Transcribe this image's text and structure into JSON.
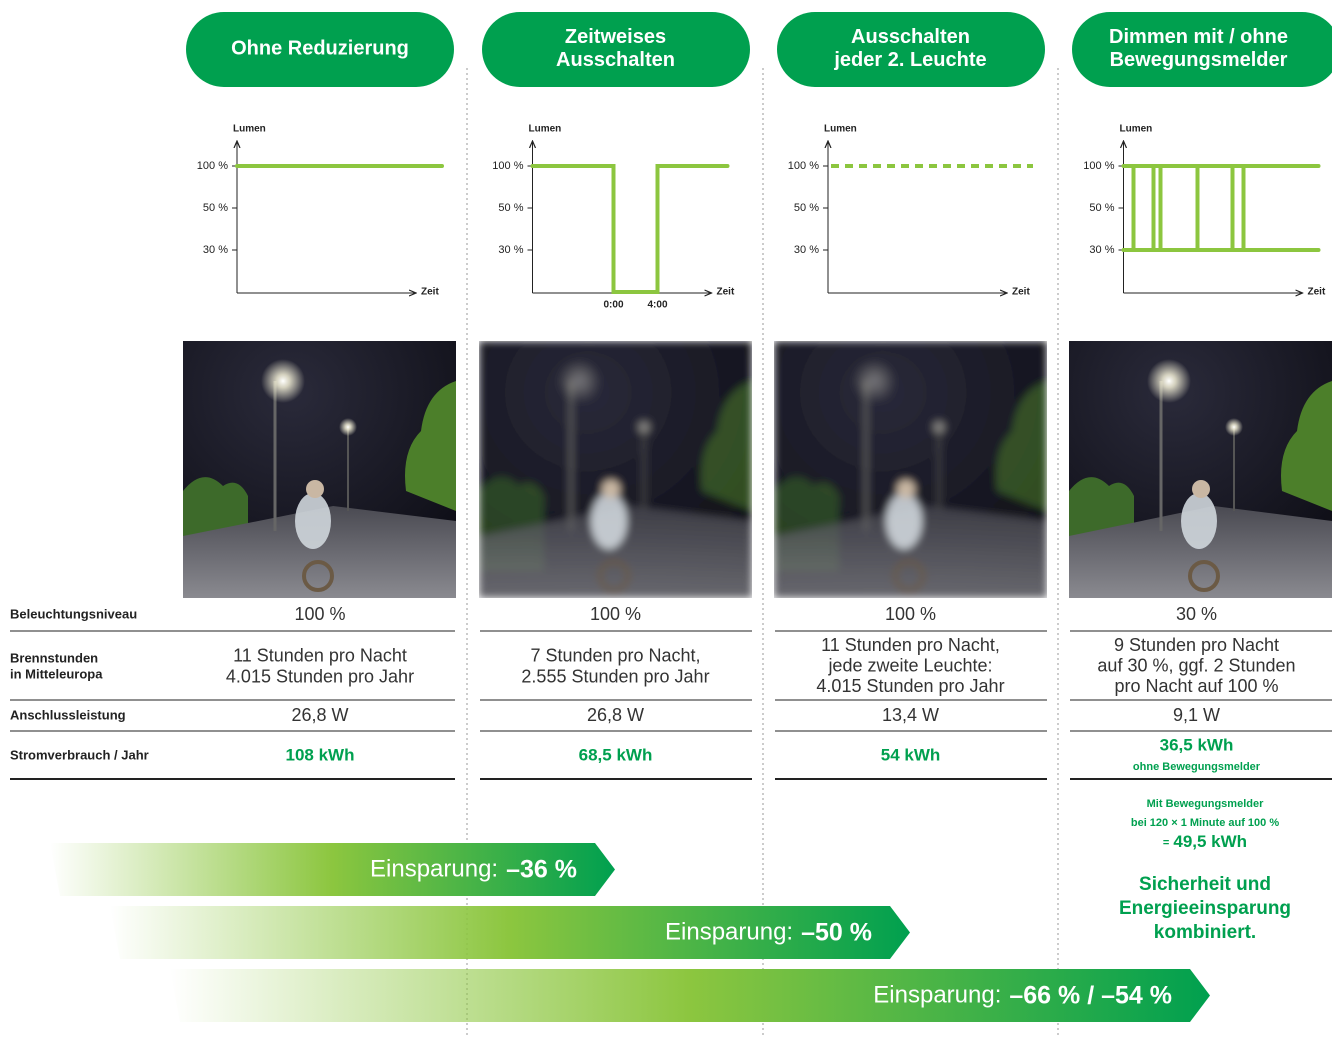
{
  "columns": [
    {
      "title": [
        "Ohne Reduzierung"
      ]
    },
    {
      "title": [
        "Zeitweises",
        "Ausschalten"
      ],
      "time_labels": [
        "0:00",
        "4:00"
      ]
    },
    {
      "title": [
        "Ausschalten",
        "jeder 2. Leuchte"
      ]
    },
    {
      "title": [
        "Dimmen mit / ohne",
        "Bewegungsmelder"
      ]
    }
  ],
  "chart_axes": {
    "y_label": "Lumen",
    "x_label": "Zeit",
    "ticks": [
      "100 %",
      "50 %",
      "30 %"
    ]
  },
  "rows": [
    {
      "label": [
        "Beleuchtungsniveau"
      ],
      "cells": [
        [
          "100 %"
        ],
        [
          "100 %"
        ],
        [
          "100 %"
        ],
        [
          "30 %"
        ]
      ]
    },
    {
      "label": [
        "Brennstunden",
        "in Mitteleuropa"
      ],
      "cells": [
        [
          "11 Stunden pro Nacht",
          "4.015 Stunden pro Jahr"
        ],
        [
          "7 Stunden pro Nacht,",
          "2.555 Stunden pro Jahr"
        ],
        [
          "11 Stunden pro Nacht,",
          "jede zweite Leuchte:",
          "4.015 Stunden pro Jahr"
        ],
        [
          "9 Stunden pro Nacht",
          "auf 30 %, ggf. 2 Stunden",
          "pro Nacht auf 100 %"
        ]
      ]
    },
    {
      "label": [
        "Anschlussleistung"
      ],
      "cells": [
        [
          "26,8 W"
        ],
        [
          "26,8 W"
        ],
        [
          "13,4 W"
        ],
        [
          "9,1 W"
        ]
      ]
    },
    {
      "label": [
        "Stromverbrauch / Jahr"
      ],
      "cells": [
        [
          "108 kWh"
        ],
        [
          "68,5 kWh"
        ],
        [
          "54 kWh"
        ],
        [
          "36,5 kWh",
          "ohne Bewegungsmelder"
        ]
      ]
    }
  ],
  "motion_note": [
    "Mit Bewegungsmelder",
    "bei 120 × 1 Minute auf 100 %"
  ],
  "motion_eq": "=",
  "motion_value": "49,5 kWh",
  "slogan": [
    "Sicherheit und",
    "Energieeinsparung",
    "kombiniert."
  ],
  "savings": [
    {
      "label": "Einsparung:",
      "value": "–36 %"
    },
    {
      "label": "Einsparung:",
      "value": "–50 %"
    },
    {
      "label": "Einsparung:",
      "value": "–66 % / –54 %"
    }
  ]
}
